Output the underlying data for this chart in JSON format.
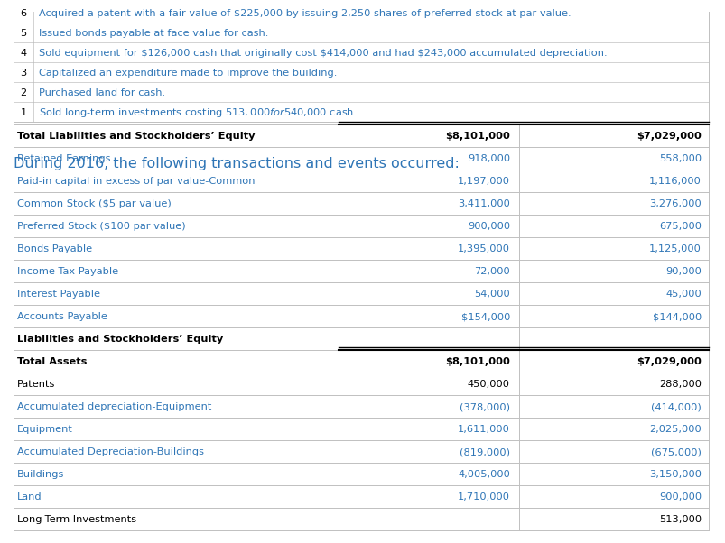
{
  "table1_rows": [
    [
      "Long-Term Investments",
      "-",
      "513,000",
      false,
      false,
      false,
      false
    ],
    [
      "Land",
      "1,710,000",
      "900,000",
      false,
      false,
      true,
      false
    ],
    [
      "Buildings",
      "4,005,000",
      "3,150,000",
      false,
      false,
      true,
      false
    ],
    [
      "Accumulated Depreciation-Buildings",
      "(819,000)",
      "(675,000)",
      false,
      false,
      true,
      false
    ],
    [
      "Equipment",
      "1,611,000",
      "2,025,000",
      false,
      false,
      true,
      false
    ],
    [
      "Accumulated depreciation-Equipment",
      "(378,000)",
      "(414,000)",
      false,
      false,
      true,
      false
    ],
    [
      "Patents",
      "450,000",
      "288,000",
      false,
      false,
      false,
      false
    ],
    [
      "Total Assets",
      "$8,101,000",
      "$7,029,000",
      true,
      false,
      false,
      true
    ],
    [
      "Liabilities and Stockholders’ Equity",
      "",
      "",
      true,
      false,
      false,
      false
    ],
    [
      "Accounts Payable",
      "$154,000",
      "$144,000",
      false,
      false,
      true,
      false
    ],
    [
      "Interest Payable",
      "54,000",
      "45,000",
      false,
      false,
      true,
      false
    ],
    [
      "Income Tax Payable",
      "72,000",
      "90,000",
      false,
      false,
      true,
      false
    ],
    [
      "Bonds Payable",
      "1,395,000",
      "1,125,000",
      false,
      false,
      true,
      false
    ],
    [
      "Preferred Stock ($100 par value)",
      "900,000",
      "675,000",
      false,
      false,
      true,
      false
    ],
    [
      "Common Stock ($5 par value)",
      "3,411,000",
      "3,276,000",
      false,
      false,
      true,
      false
    ],
    [
      "Paid-in capital in excess of par value-Common",
      "1,197,000",
      "1,116,000",
      false,
      false,
      true,
      false
    ],
    [
      "Retained Earnings",
      "918,000",
      "558,000",
      false,
      false,
      true,
      false
    ],
    [
      "Total Liabilities and Stockholders’ Equity",
      "$8,101,000",
      "$7,029,000",
      true,
      false,
      false,
      true
    ]
  ],
  "transactions_title": "During 2016, the following transactions and events occurred:",
  "transactions": [
    [
      1,
      "Sold long-term investments costing $513,000 for $540,000 cash."
    ],
    [
      2,
      "Purchased land for cash."
    ],
    [
      3,
      "Capitalized an expenditure made to improve the building."
    ],
    [
      4,
      "Sold equipment for $126,000 cash that originally cost $414,000 and had $243,000 accumulated depreciation."
    ],
    [
      5,
      "Issued bonds payable at face value for cash."
    ],
    [
      6,
      "Acquired a patent with a fair value of $225,000 by issuing 2,250 shares of preferred stock at par value."
    ]
  ],
  "bg_color": "#ffffff",
  "blue_text_color": "#2e75b6",
  "black_text_color": "#000000",
  "grid_color": "#c0c0c0",
  "double_line_color": "#000000"
}
